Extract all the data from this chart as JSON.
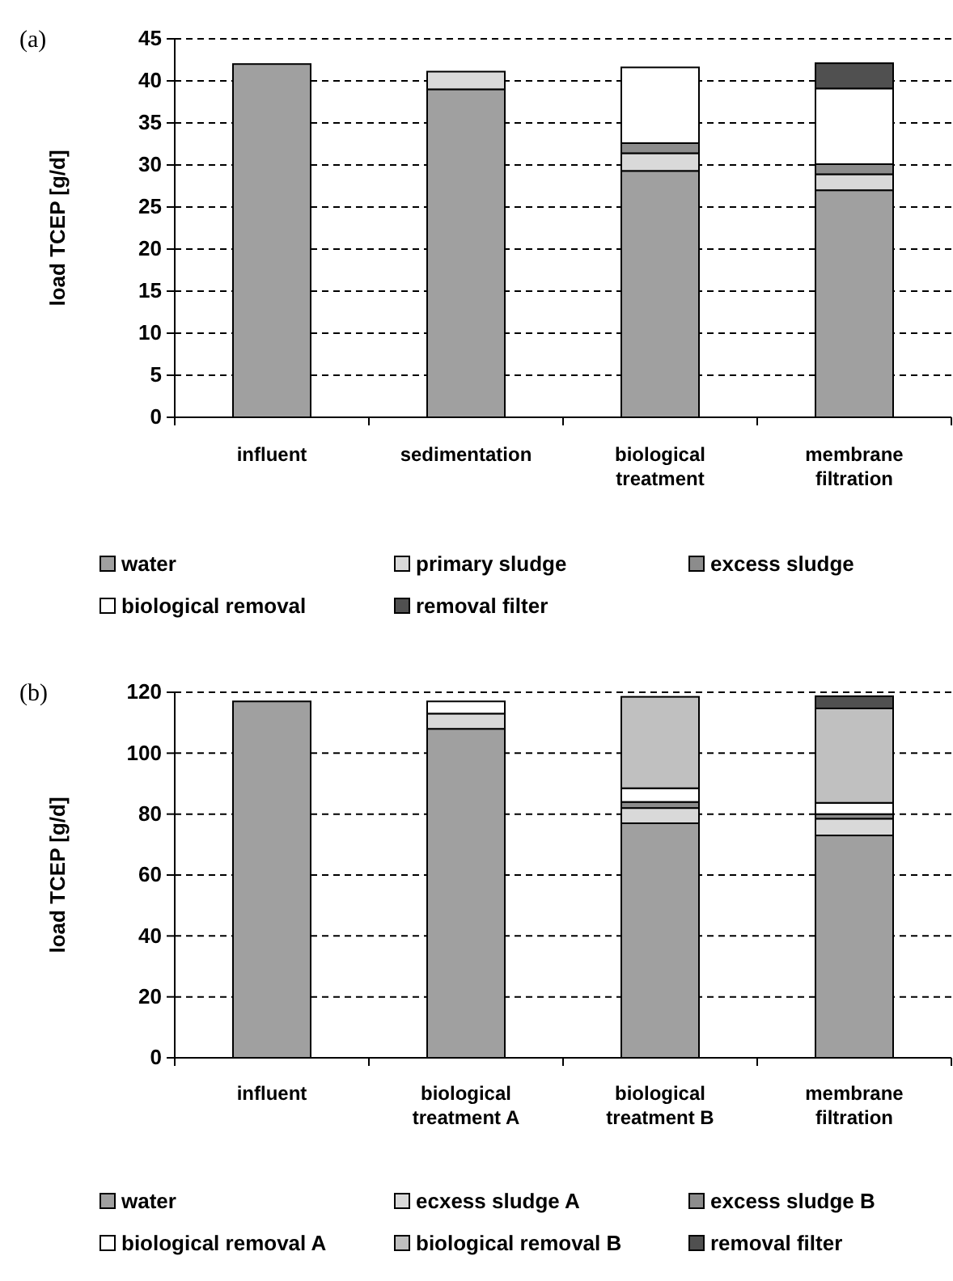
{
  "chart_data": [
    {
      "type": "bar",
      "title": "(a)",
      "ylabel": "load TCEP [g/d]",
      "stacked": true,
      "grid": "y",
      "legend": "bottom",
      "categories": [
        "influent",
        "sedimentation",
        "biological\ntreatment",
        "membrane\nfiltration"
      ],
      "ylim": [
        0,
        45
      ],
      "yticks": [
        0,
        5,
        10,
        15,
        20,
        25,
        30,
        35,
        40,
        45
      ],
      "series": [
        {
          "name": "water",
          "color": "#a0a0a0",
          "values": [
            42,
            39,
            29.3,
            27
          ]
        },
        {
          "name": "primary sludge",
          "color": "#d9d9d9",
          "values": [
            null,
            2.1,
            2.1,
            1.9
          ]
        },
        {
          "name": "excess sludge",
          "color": "#8c8c8c",
          "values": [
            null,
            null,
            1.2,
            1.2
          ]
        },
        {
          "name": "biological removal",
          "color": "#ffffff",
          "values": [
            null,
            null,
            9,
            9
          ]
        },
        {
          "name": "removal filter",
          "color": "#505050",
          "values": [
            null,
            null,
            null,
            3
          ]
        }
      ]
    },
    {
      "type": "bar",
      "title": "(b)",
      "ylabel": "load TCEP [g/d]",
      "stacked": true,
      "grid": "y",
      "legend": "bottom",
      "categories": [
        "influent",
        "biological\ntreatment A",
        "biological\ntreatment B",
        "membrane\nfiltration"
      ],
      "ylim": [
        0,
        120
      ],
      "yticks": [
        0,
        20,
        40,
        60,
        80,
        100,
        120
      ],
      "series": [
        {
          "name": "water",
          "color": "#a0a0a0",
          "values": [
            117,
            108,
            77,
            73
          ]
        },
        {
          "name": "ecxess sludge A",
          "color": "#d9d9d9",
          "values": [
            null,
            5,
            5,
            5.5
          ]
        },
        {
          "name": "excess sludge B",
          "color": "#8c8c8c",
          "values": [
            null,
            null,
            2,
            1.5
          ]
        },
        {
          "name": "biological removal A",
          "color": "#ffffff",
          "values": [
            null,
            4,
            4.5,
            3.7
          ]
        },
        {
          "name": "biological removal B",
          "color": "#c0c0c0",
          "values": [
            null,
            null,
            30,
            31
          ]
        },
        {
          "name": "removal filter",
          "color": "#505050",
          "values": [
            null,
            null,
            null,
            4
          ]
        }
      ]
    }
  ]
}
